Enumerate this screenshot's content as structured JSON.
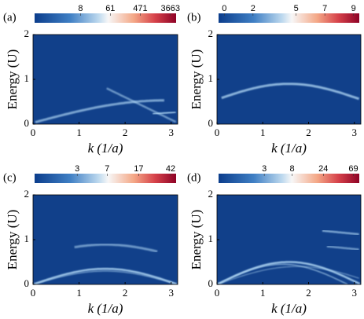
{
  "chart_data": [
    {
      "type": "heatmap",
      "panel_label": "(a)",
      "xlabel": "k (1/a)",
      "ylabel": "Energy (U)",
      "xlim": [
        0,
        3.14159
      ],
      "xticks": [
        0,
        1,
        2,
        3
      ],
      "ylim": [
        0,
        2
      ],
      "yticks": [
        0,
        1,
        2
      ],
      "colorbar_scale": "log",
      "zlim": [
        0.35,
        5400
      ],
      "colorbar_ticks": [
        8,
        61,
        471,
        3663
      ]
    },
    {
      "type": "heatmap",
      "panel_label": "(b)",
      "xlabel": "k (1/a)",
      "ylabel": "Energy (U)",
      "xlim": [
        0,
        3.14159
      ],
      "xticks": [
        0,
        1,
        2,
        3
      ],
      "ylim": [
        0,
        2
      ],
      "yticks": [
        0,
        1,
        2
      ],
      "colorbar_scale": "linear",
      "zlim": [
        -0.4,
        9.4
      ],
      "colorbar_ticks": [
        0,
        2,
        5,
        7,
        9
      ]
    },
    {
      "type": "heatmap",
      "panel_label": "(c)",
      "xlabel": "k (1/a)",
      "ylabel": "Energy (U)",
      "xlim": [
        0,
        3.14159
      ],
      "xticks": [
        0,
        1,
        2,
        3
      ],
      "ylim": [
        0,
        2
      ],
      "yticks": [
        0,
        1,
        2
      ],
      "colorbar_scale": "log",
      "zlim": [
        0.9,
        49
      ],
      "colorbar_ticks": [
        3,
        7,
        17,
        42
      ]
    },
    {
      "type": "heatmap",
      "panel_label": "(d)",
      "xlabel": "k (1/a)",
      "ylabel": "Energy (U)",
      "xlim": [
        0,
        3.14159
      ],
      "xticks": [
        0,
        1,
        2,
        3
      ],
      "ylim": [
        0,
        2
      ],
      "yticks": [
        0,
        1,
        2
      ],
      "colorbar_scale": "log",
      "zlim": [
        0.6,
        85
      ],
      "colorbar_ticks": [
        3,
        8,
        24,
        69
      ]
    }
  ]
}
